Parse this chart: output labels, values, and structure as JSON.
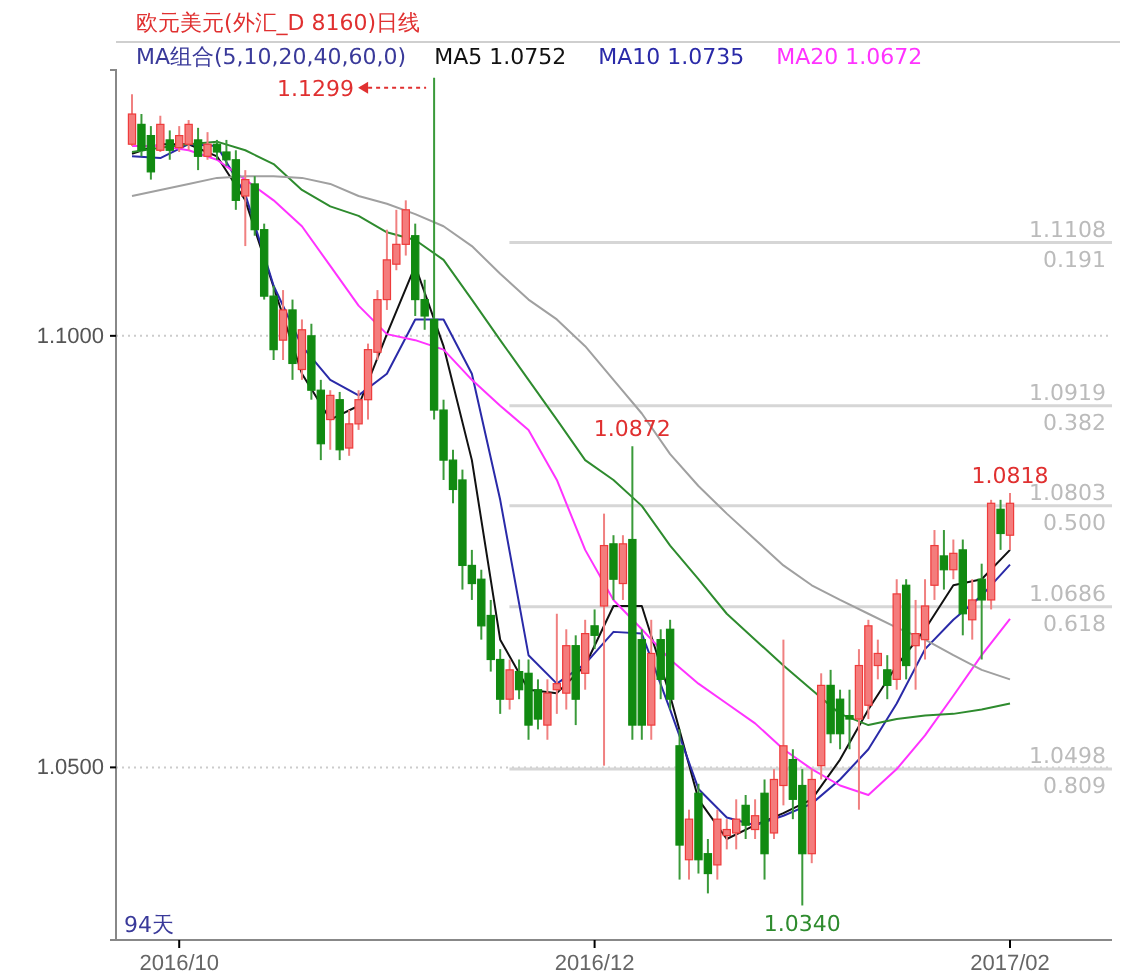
{
  "chart_data": {
    "type": "candlestick",
    "title": "欧元美元(外汇_D 8160)日线",
    "legend_title": "MA组合(5,10,20,40,60,0)",
    "legend": "top",
    "grid": "y",
    "categories": [
      null,
      null,
      null,
      null,
      null,
      "2016/10",
      null,
      null,
      null,
      null,
      null,
      null,
      null,
      null,
      null,
      null,
      null,
      null,
      null,
      null,
      null,
      null,
      null,
      null,
      null,
      null,
      null,
      null,
      null,
      null,
      null,
      null,
      null,
      null,
      null,
      null,
      null,
      null,
      null,
      null,
      null,
      null,
      null,
      null,
      null,
      null,
      null,
      null,
      null,
      "2016/12",
      null,
      null,
      null,
      null,
      null,
      null,
      null,
      null,
      null,
      null,
      null,
      null,
      null,
      null,
      null,
      null,
      null,
      null,
      null,
      null,
      null,
      null,
      null,
      null,
      null,
      null,
      null,
      null,
      null,
      null,
      null,
      null,
      null,
      null,
      null,
      null,
      null,
      null,
      null,
      null,
      null,
      null,
      null,
      "2017/02"
    ],
    "ohlc": [
      [
        1.1222,
        1.128,
        1.122,
        1.1257
      ],
      [
        1.1245,
        1.1257,
        1.1208,
        1.1215
      ],
      [
        1.1232,
        1.1243,
        1.1181,
        1.119
      ],
      [
        1.1215,
        1.1255,
        1.1213,
        1.1245
      ],
      [
        1.1227,
        1.1238,
        1.1204,
        1.1215
      ],
      [
        1.1218,
        1.1243,
        1.1213,
        1.1232
      ],
      [
        1.1222,
        1.125,
        1.1215,
        1.1245
      ],
      [
        1.1227,
        1.1241,
        1.1192,
        1.1208
      ],
      [
        1.1208,
        1.1236,
        1.1204,
        1.1222
      ],
      [
        1.1222,
        1.1227,
        1.1204,
        1.1213
      ],
      [
        1.1213,
        1.1227,
        1.1197,
        1.1204
      ],
      [
        1.1204,
        1.1215,
        1.1146,
        1.1157
      ],
      [
        1.1162,
        1.1192,
        1.1104,
        1.1181
      ],
      [
        1.1176,
        1.1185,
        1.1116,
        1.1123
      ],
      [
        1.1123,
        1.113,
        1.1042,
        1.1046
      ],
      [
        1.1046,
        1.1058,
        1.0972,
        1.0984
      ],
      [
        1.0995,
        1.1053,
        1.0972,
        1.103
      ],
      [
        1.103,
        1.1042,
        1.0949,
        1.0968
      ],
      [
        1.0961,
        1.1019,
        1.0949,
        1.1007
      ],
      [
        1.1,
        1.1014,
        1.0926,
        1.0937
      ],
      [
        1.0937,
        1.0949,
        1.0856,
        1.0875
      ],
      [
        1.0903,
        1.0937,
        1.0868,
        1.0931
      ],
      [
        1.0926,
        1.0935,
        1.0856,
        1.0868
      ],
      [
        1.087,
        1.0914,
        1.0861,
        1.0898
      ],
      [
        1.0898,
        1.0937,
        1.0891,
        1.0926
      ],
      [
        1.0926,
        1.0991,
        1.0903,
        1.0984
      ],
      [
        1.0981,
        1.1053,
        1.0972,
        1.1042
      ],
      [
        1.1042,
        1.1123,
        1.103,
        1.1088
      ],
      [
        1.1083,
        1.1146,
        1.1076,
        1.1106
      ],
      [
        1.1106,
        1.1157,
        1.1093,
        1.1146
      ],
      [
        1.1116,
        1.113,
        1.1023,
        1.1042
      ],
      [
        1.1042,
        1.1065,
        1.1007,
        1.1023
      ],
      [
        1.1019,
        1.1299,
        1.0903,
        1.0914
      ],
      [
        1.0914,
        1.0926,
        1.0833,
        1.0856
      ],
      [
        1.0856,
        1.0868,
        1.0806,
        1.0822
      ],
      [
        1.0833,
        1.0845,
        1.0706,
        1.0734
      ],
      [
        1.0734,
        1.0752,
        1.0694,
        1.0713
      ],
      [
        1.0718,
        1.0729,
        1.0648,
        1.0664
      ],
      [
        1.0676,
        1.0694,
        1.0611,
        1.0625
      ],
      [
        1.0625,
        1.0637,
        1.0562,
        1.0579
      ],
      [
        1.0579,
        1.0625,
        1.0567,
        1.0613
      ],
      [
        1.0611,
        1.0625,
        1.0579,
        1.059
      ],
      [
        1.0609,
        1.0625,
        1.0532,
        1.0549
      ],
      [
        1.059,
        1.0602,
        1.0544,
        1.0556
      ],
      [
        1.0549,
        1.0602,
        1.0532,
        1.0586
      ],
      [
        1.059,
        1.0678,
        1.0562,
        1.0597
      ],
      [
        1.0586,
        1.066,
        1.0567,
        1.0641
      ],
      [
        1.0641,
        1.0653,
        1.0549,
        1.0579
      ],
      [
        1.0609,
        1.0671,
        1.059,
        1.0655
      ],
      [
        1.0664,
        1.0683,
        1.0637,
        1.0653
      ],
      [
        1.0687,
        1.0794,
        1.0502,
        1.0757
      ],
      [
        1.0759,
        1.0769,
        1.0694,
        1.0718
      ],
      [
        1.0713,
        1.0769,
        1.0694,
        1.0759
      ],
      [
        1.0764,
        1.0872,
        1.0532,
        1.0549
      ],
      [
        1.0648,
        1.066,
        1.0532,
        1.0549
      ],
      [
        1.0549,
        1.0671,
        1.0532,
        1.0632
      ],
      [
        1.0648,
        1.066,
        1.0579,
        1.0602
      ],
      [
        1.066,
        1.0671,
        1.0567,
        1.0579
      ],
      [
        1.0525,
        1.0544,
        1.037,
        1.041
      ],
      [
        1.0393,
        1.0451,
        1.037,
        1.044
      ],
      [
        1.047,
        1.0481,
        1.0377,
        1.0393
      ],
      [
        1.04,
        1.0417,
        1.0354,
        1.0377
      ],
      [
        1.0387,
        1.0451,
        1.037,
        1.044
      ],
      [
        1.0421,
        1.044,
        1.0405,
        1.0428
      ],
      [
        1.0424,
        1.0463,
        1.0405,
        1.044
      ],
      [
        1.0456,
        1.0468,
        1.0417,
        1.0433
      ],
      [
        1.0428,
        1.0463,
        1.0417,
        1.0444
      ],
      [
        1.047,
        1.0486,
        1.037,
        1.04
      ],
      [
        1.0424,
        1.0498,
        1.0417,
        1.0486
      ],
      [
        1.0479,
        1.0648,
        1.0456,
        1.0525
      ],
      [
        1.0509,
        1.0521,
        1.044,
        1.0463
      ],
      [
        1.0479,
        1.0498,
        1.034,
        1.04
      ],
      [
        1.04,
        1.0498,
        1.0389,
        1.0486
      ],
      [
        1.0502,
        1.0609,
        1.0486,
        1.0595
      ],
      [
        1.0595,
        1.0613,
        1.0528,
        1.0539
      ],
      [
        1.0579,
        1.059,
        1.0521,
        1.0539
      ],
      [
        1.056,
        1.059,
        1.0521,
        1.0556
      ],
      [
        1.0556,
        1.0637,
        1.0451,
        1.0618
      ],
      [
        1.0572,
        1.0671,
        1.0556,
        1.0664
      ],
      [
        1.0618,
        1.0648,
        1.0602,
        1.0632
      ],
      [
        1.0613,
        1.063,
        1.0579,
        1.0595
      ],
      [
        1.0602,
        1.0718,
        1.059,
        1.0701
      ],
      [
        1.0711,
        1.0718,
        1.0602,
        1.0618
      ],
      [
        1.0641,
        1.0694,
        1.059,
        1.0655
      ],
      [
        1.0648,
        1.0718,
        1.0625,
        1.0687
      ],
      [
        1.0711,
        1.0775,
        1.0694,
        1.0757
      ],
      [
        1.0745,
        1.0775,
        1.0706,
        1.0729
      ],
      [
        1.0729,
        1.0764,
        1.0718,
        1.0748
      ],
      [
        1.0752,
        1.0764,
        1.0653,
        1.0678
      ],
      [
        1.0671,
        1.0718,
        1.0648,
        1.0694
      ],
      [
        1.0718,
        1.0736,
        1.0625,
        1.0694
      ],
      [
        1.0694,
        1.081,
        1.0683,
        1.0806
      ],
      [
        1.0799,
        1.081,
        1.0752,
        1.0771
      ],
      [
        1.0769,
        1.0818,
        1.0752,
        1.0806
      ]
    ],
    "series": [
      {
        "type": "line",
        "name": "MA5 1.0752",
        "color": "#111111",
        "values": [
          1.1211,
          null,
          null,
          1.1222,
          null,
          null,
          1.1222,
          null,
          null,
          1.1208,
          null,
          null,
          1.1157,
          null,
          null,
          null,
          null,
          null,
          1.0956,
          null,
          null,
          1.0903,
          null,
          null,
          1.0919,
          null,
          null,
          1.1002,
          null,
          null,
          1.1081,
          null,
          null,
          1.0988,
          null,
          null,
          1.0856,
          null,
          null,
          1.0648,
          null,
          null,
          1.059,
          null,
          null,
          1.0586,
          null,
          null,
          1.0618,
          null,
          null,
          1.0687,
          null,
          null,
          1.0687,
          null,
          null,
          1.0583,
          null,
          null,
          1.0463,
          null,
          null,
          1.0417,
          null,
          null,
          1.0433,
          null,
          null,
          1.0447,
          null,
          null,
          1.0463,
          null,
          null,
          1.0509,
          null,
          null,
          1.0567,
          null,
          null,
          1.0618,
          null,
          null,
          1.066,
          null,
          null,
          1.0711,
          null,
          null,
          1.0718,
          null,
          null,
          1.0752
        ]
      },
      {
        "type": "line",
        "name": "MA10 1.0735",
        "color": "#2a2aa8",
        "values": [
          1.1208,
          null,
          null,
          1.1206,
          null,
          null,
          1.1222,
          null,
          null,
          1.122,
          null,
          null,
          1.1164,
          null,
          null,
          1.1058,
          null,
          null,
          1.0988,
          null,
          null,
          1.0949,
          null,
          null,
          1.0931,
          null,
          null,
          1.0956,
          null,
          null,
          1.1019,
          null,
          null,
          1.1019,
          null,
          null,
          1.0956,
          null,
          null,
          1.081,
          null,
          null,
          1.063,
          null,
          null,
          1.0597,
          null,
          null,
          1.062,
          null,
          null,
          1.0657,
          null,
          null,
          1.0655,
          null,
          null,
          1.0567,
          null,
          null,
          1.0475,
          null,
          null,
          1.0442,
          null,
          null,
          1.0433,
          null,
          null,
          1.0444,
          null,
          null,
          1.0458,
          null,
          null,
          1.0486,
          null,
          null,
          1.0521,
          null,
          null,
          1.0574,
          null,
          null,
          1.0637,
          null,
          null,
          1.0671,
          null,
          null,
          1.0699,
          null,
          null,
          1.0735
        ]
      },
      {
        "type": "line",
        "name": "MA20 1.0672",
        "color": "#ff33ff",
        "values": [
          1.122,
          null,
          null,
          1.122,
          null,
          null,
          1.1215,
          null,
          null,
          1.1204,
          null,
          null,
          1.1181,
          null,
          null,
          1.1157,
          null,
          null,
          1.1127,
          null,
          null,
          1.1081,
          null,
          null,
          1.1035,
          null,
          null,
          1.1002,
          null,
          null,
          1.0995,
          null,
          null,
          1.0984,
          null,
          null,
          1.0949,
          null,
          null,
          1.0919,
          null,
          null,
          1.0891,
          null,
          null,
          1.0833,
          null,
          null,
          1.0752,
          null,
          null,
          1.0694,
          null,
          null,
          1.066,
          null,
          null,
          1.0625,
          null,
          null,
          1.0597,
          null,
          null,
          1.0574,
          null,
          null,
          1.0551,
          null,
          null,
          1.0521,
          null,
          null,
          1.0498,
          null,
          null,
          1.0479,
          null,
          null,
          1.0468,
          null,
          null,
          1.0498,
          null,
          null,
          1.0537,
          null,
          null,
          1.0583,
          null,
          null,
          1.063,
          null,
          null,
          1.0672
        ]
      },
      {
        "type": "line",
        "color": "#2e8b2e",
        "values": [
          1.1213,
          null,
          null,
          1.1218,
          null,
          null,
          1.1222,
          null,
          null,
          1.1225,
          null,
          null,
          1.1215,
          null,
          null,
          1.1199,
          null,
          null,
          1.1169,
          null,
          null,
          1.115,
          null,
          null,
          1.1139,
          null,
          null,
          1.112,
          null,
          null,
          1.1111,
          null,
          null,
          1.1088,
          null,
          null,
          1.1042,
          null,
          null,
          1.0995,
          null,
          null,
          1.0949,
          null,
          null,
          1.0903,
          null,
          null,
          1.0856,
          null,
          null,
          1.0833,
          null,
          null,
          1.0803,
          null,
          null,
          1.0757,
          null,
          null,
          1.0718,
          null,
          null,
          1.0678,
          null,
          null,
          1.0648,
          null,
          null,
          1.0618,
          null,
          null,
          1.059,
          null,
          null,
          1.0562,
          null,
          null,
          1.0549,
          null,
          null,
          1.0556,
          null,
          null,
          1.056,
          null,
          null,
          1.0562,
          null,
          null,
          1.0567,
          null,
          null,
          1.0574
        ]
      },
      {
        "type": "line",
        "color": "#a0a0a0",
        "values": [
          1.1162,
          null,
          null,
          1.1169,
          null,
          null,
          1.1176,
          null,
          null,
          1.1183,
          null,
          null,
          1.1185,
          null,
          null,
          1.1185,
          null,
          null,
          1.1183,
          null,
          null,
          1.1176,
          null,
          null,
          1.1162,
          null,
          null,
          1.1153,
          null,
          null,
          1.1141,
          null,
          null,
          1.1127,
          null,
          null,
          1.1104,
          null,
          null,
          1.1072,
          null,
          null,
          1.1042,
          null,
          null,
          1.1019,
          null,
          null,
          1.0988,
          null,
          null,
          1.0949,
          null,
          null,
          1.091,
          null,
          null,
          1.0863,
          null,
          null,
          1.0826,
          null,
          null,
          1.0794,
          null,
          null,
          1.0764,
          null,
          null,
          1.0734,
          null,
          null,
          1.0711,
          null,
          null,
          1.0694,
          null,
          null,
          1.0678,
          null,
          null,
          1.0662,
          null,
          null,
          1.0648,
          null,
          null,
          1.063,
          null,
          null,
          1.0613,
          null,
          null,
          1.0602
        ]
      }
    ],
    "ylim": [
      1.03,
      1.1308
    ],
    "yticks": [
      {
        "value": 1.05,
        "label": "1.0500"
      },
      {
        "value": 1.1,
        "label": "1.1000"
      }
    ],
    "ref_lines": [
      {
        "axis": "y",
        "value": 1.1108,
        "label": "1.1108",
        "color": "#d6d6d6"
      },
      {
        "axis": "y",
        "value": 1.0919,
        "label": "1.0919",
        "color": "#d6d6d6"
      },
      {
        "axis": "y",
        "value": 1.0803,
        "label": "1.0803",
        "color": "#d6d6d6"
      },
      {
        "axis": "y",
        "value": 1.0686,
        "label": "1.0686",
        "color": "#d6d6d6"
      },
      {
        "axis": "y",
        "value": 1.0498,
        "label": "1.0498",
        "color": "#d6d6d6"
      }
    ],
    "annotations": [
      "1.1299",
      {
        "text": "0.191",
        "y": 1.1108
      },
      {
        "text": "0.382",
        "y": 1.0919
      },
      {
        "text": "0.500",
        "y": 1.0803
      },
      {
        "text": "0.618",
        "y": 1.0686
      },
      {
        "text": "0.809",
        "y": 1.0498
      },
      {
        "text": "1.0872",
        "y": 1.0872
      },
      {
        "text": "1.0818",
        "y": 1.0818
      },
      {
        "text": "1.0340",
        "y": 1.034
      },
      "94天"
    ]
  }
}
